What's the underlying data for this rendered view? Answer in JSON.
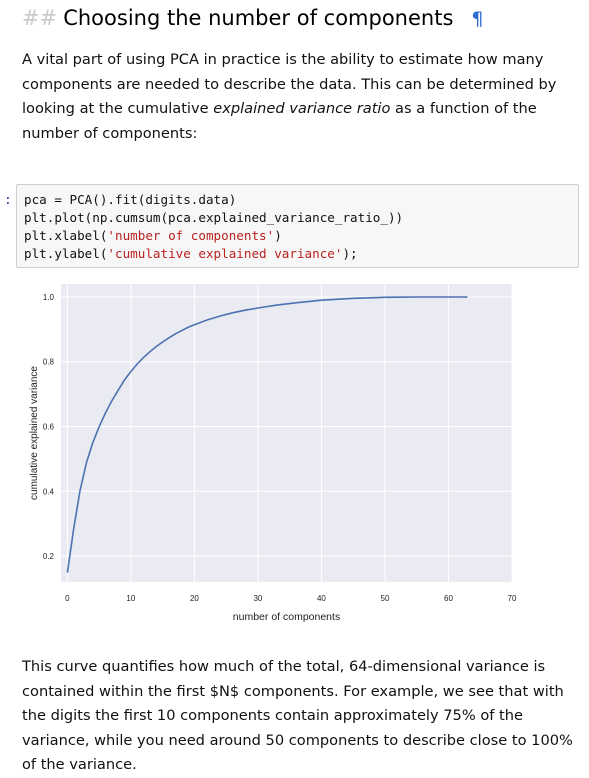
{
  "heading": {
    "hashes": "##",
    "title": "Choosing the number of components",
    "anchor": "¶"
  },
  "para1": {
    "before": "A vital part of using PCA in practice is the ability to estimate how many components are needed to describe the data. This can be determined by looking at the cumulative ",
    "emph": "explained variance ratio",
    "after": " as a function of the number of components:"
  },
  "code": {
    "prompt": ":",
    "lines": [
      "pca = PCA().fit(digits.data)",
      "plt.plot(np.cumsum(pca.explained_variance_ratio_))",
      "plt.xlabel('number of components')",
      "plt.ylabel('cumulative explained variance');"
    ],
    "line3": {
      "pre": "plt.xlabel(",
      "str": "'number of components'",
      "post": ")"
    },
    "line4": {
      "pre": "plt.ylabel(",
      "str": "'cumulative explained variance'",
      "post": ");"
    }
  },
  "chart_data": {
    "type": "line",
    "title": "",
    "xlabel": "number of components",
    "ylabel": "cumulative explained variance",
    "xlim": [
      -1,
      70
    ],
    "ylim": [
      0.12,
      1.04
    ],
    "xticks": [
      0,
      10,
      20,
      30,
      40,
      50,
      60,
      70
    ],
    "yticks": [
      0.2,
      0.4,
      0.6,
      0.8,
      1.0
    ],
    "ytick_labels": [
      "0.2",
      "0.4",
      "0.6",
      "0.8",
      "1.0"
    ],
    "grid": true,
    "background": "#eaeaf2",
    "line_color": "#4c72b0",
    "series": [
      {
        "name": "",
        "x": [
          0,
          1,
          2,
          3,
          4,
          5,
          6,
          7,
          8,
          9,
          10,
          11,
          12,
          13,
          14,
          15,
          16,
          17,
          18,
          19,
          20,
          22,
          24,
          26,
          28,
          30,
          33,
          36,
          40,
          45,
          50,
          55,
          60,
          63
        ],
        "y": [
          0.149,
          0.285,
          0.403,
          0.488,
          0.55,
          0.599,
          0.642,
          0.679,
          0.712,
          0.744,
          0.77,
          0.793,
          0.813,
          0.831,
          0.847,
          0.861,
          0.874,
          0.886,
          0.896,
          0.906,
          0.914,
          0.929,
          0.941,
          0.951,
          0.959,
          0.966,
          0.975,
          0.982,
          0.99,
          0.996,
          0.999,
          1.0,
          1.0,
          1.0
        ]
      }
    ]
  },
  "para2": {
    "text": "This curve quantifies how much of the total, 64-dimensional variance is contained within the first $N$ components. For example, we see that with the digits the first 10 components contain approximately 75% of the variance, while you need around 50 components to describe close to 100% of the variance."
  }
}
